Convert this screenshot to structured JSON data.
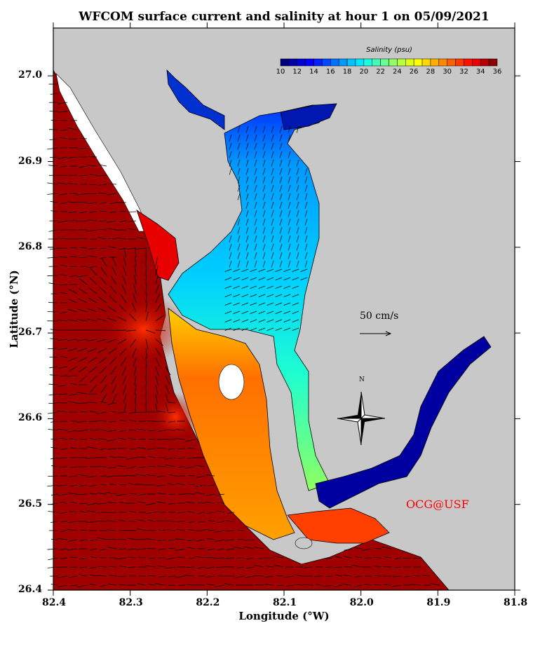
{
  "title": "WFCOM surface current and salinity at hour 1 on 05/09/2021",
  "x_axis": {
    "label": "Longitude (°W)",
    "ticks": [
      "82.4",
      "82.3",
      "82.2",
      "82.1",
      "82.0",
      "81.9",
      "81.8"
    ]
  },
  "y_axis": {
    "label": "Latitude (°N)",
    "ticks": [
      "26.4",
      "26.5",
      "26.6",
      "26.7",
      "26.8",
      "26.9",
      "27.0"
    ]
  },
  "colorbar": {
    "title": "Salinity (psu)",
    "min": 10,
    "max": 36,
    "step": 1,
    "labels": [
      "10",
      "12",
      "14",
      "16",
      "18",
      "20",
      "22",
      "24",
      "26",
      "28",
      "30",
      "32",
      "34",
      "36"
    ],
    "colors": [
      "#00007f",
      "#0000a8",
      "#0000d4",
      "#0000ff",
      "#0020ff",
      "#0048ff",
      "#0070ff",
      "#0098ff",
      "#00c0ff",
      "#00e8ff",
      "#18ffe0",
      "#40ffb8",
      "#68ff90",
      "#90ff68",
      "#b8ff40",
      "#e0ff18",
      "#ffff00",
      "#ffd800",
      "#ffb000",
      "#ff8800",
      "#ff6000",
      "#ff3800",
      "#ff1000",
      "#e80000",
      "#b80000",
      "#8c0000"
    ]
  },
  "vector_scale": {
    "label": "50 cm/s"
  },
  "compass": {
    "label": "N"
  },
  "credit": "OCG@USF",
  "colors": {
    "land": "#c8c8c8",
    "gulf": "#a00000",
    "beach": "#ffffff"
  }
}
